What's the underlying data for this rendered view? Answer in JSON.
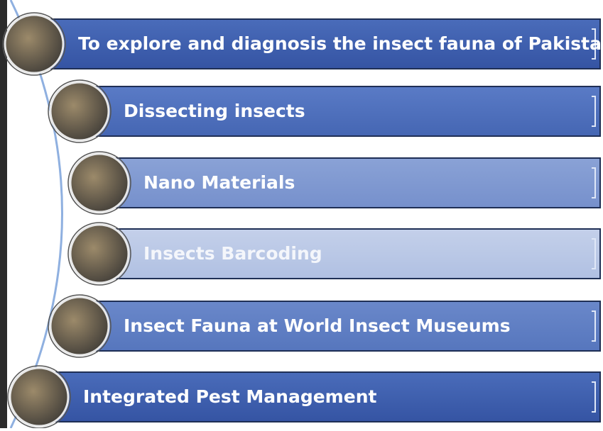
{
  "items": [
    {
      "label": "To explore and diagnosis the insect fauna of Pakistan"
    },
    {
      "label": "Dissecting insects"
    },
    {
      "label": "Nano Materials"
    },
    {
      "label": "Insects Barcoding"
    },
    {
      "label": "Insect Fauna at World Insect Museums"
    },
    {
      "label": "Integrated Pest Management"
    }
  ]
}
